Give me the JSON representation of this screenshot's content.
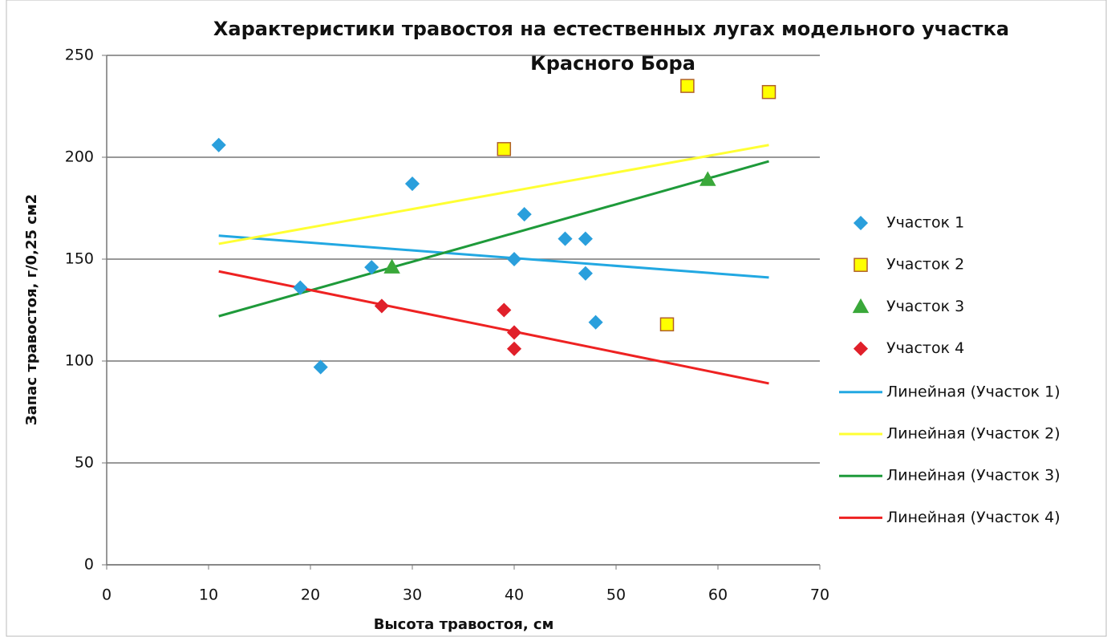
{
  "chart_data": {
    "type": "scatter",
    "title": [
      "Характеристики травостоя на естественных лугах модельного участка",
      "Красного Бора"
    ],
    "x_label": "Высота травостоя,  см",
    "y_label": "Запас травостоя,  г/0,25 см2",
    "xlim": [
      0,
      70
    ],
    "xticks": [
      0,
      10,
      20,
      30,
      40,
      50,
      60,
      70
    ],
    "ylim": [
      0,
      250
    ],
    "yticks": [
      0,
      50,
      100,
      150,
      200,
      250
    ],
    "grid": true,
    "legend": "right",
    "series": [
      {
        "name": "Участок 1",
        "marker": "diamond",
        "color": "#2a9fdc",
        "stroke": "#2a9fdc",
        "x": [
          11,
          19,
          21,
          26,
          30,
          40,
          41,
          45,
          47,
          47,
          48
        ],
        "values": [
          206,
          136,
          97,
          146,
          187,
          150,
          172,
          160,
          160,
          143,
          119
        ]
      },
      {
        "name": "Участок 2",
        "marker": "square",
        "color": "#ffff00",
        "stroke": "#b0602a",
        "x": [
          39,
          55,
          57,
          65
        ],
        "values": [
          204,
          118,
          235,
          232
        ]
      },
      {
        "name": "Участок 3",
        "marker": "triangle",
        "color": "#3aa83a",
        "stroke": "#3aa83a",
        "x": [
          28,
          59
        ],
        "values": [
          146,
          189
        ]
      },
      {
        "name": "Участок 4",
        "marker": "diamond",
        "color": "#e0202a",
        "stroke": "#e0202a",
        "x": [
          27,
          39,
          40,
          40
        ],
        "values": [
          127,
          125,
          114,
          106
        ]
      },
      {
        "name": "Линейная (Участок 1)",
        "marker": "line",
        "color": "#22a8e2",
        "x": [
          11,
          65
        ],
        "values": [
          161.5,
          141
        ]
      },
      {
        "name": "Линейная (Участок 2)",
        "marker": "line",
        "color": "#ffff33",
        "x": [
          11,
          65
        ],
        "values": [
          157.5,
          206
        ]
      },
      {
        "name": "Линейная (Участок 3)",
        "marker": "line",
        "color": "#1e9a3a",
        "x": [
          11,
          65
        ],
        "values": [
          122,
          198
        ]
      },
      {
        "name": "Линейная (Участок 4)",
        "marker": "line",
        "color": "#ee2222",
        "x": [
          11,
          65
        ],
        "values": [
          144,
          89
        ]
      }
    ]
  }
}
